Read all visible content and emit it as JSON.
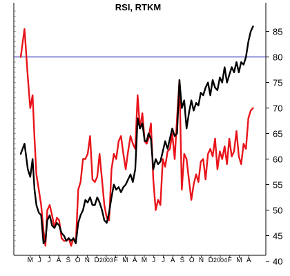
{
  "chart_data": {
    "type": "line",
    "title": "RSI, RTKM",
    "xlabel": "",
    "ylabel": "",
    "ylim": [
      40,
      88
    ],
    "y_ticks": [
      40,
      45,
      50,
      55,
      60,
      65,
      70,
      75,
      80,
      85
    ],
    "y_tick_labels": [
      "40",
      "45",
      "50",
      "55",
      "60",
      "65",
      "70",
      "75",
      "80",
      "85"
    ],
    "x_tick_labels": [
      "M",
      "J",
      "J",
      "A",
      "S",
      "O",
      "N",
      "D",
      "2003",
      "F",
      "M",
      "A",
      "M",
      "J",
      "J",
      "A",
      "S",
      "O",
      "N",
      "D",
      "2004",
      "F",
      "M",
      "A"
    ],
    "x_tick_positions": [
      1.0,
      2.0,
      3.0,
      4.0,
      5.0,
      6.0,
      7.0,
      8.0,
      9.0,
      10.0,
      11.0,
      12.0,
      13.0,
      14.0,
      15.0,
      16.0,
      17.0,
      18.0,
      19.0,
      20.0,
      21.0,
      22.0,
      23.0,
      24.0
    ],
    "xlim": [
      0,
      25.5
    ],
    "grid": false,
    "reference_lines": [
      {
        "y": 80,
        "color": "#1a1aa8"
      }
    ],
    "series": [
      {
        "color": "#e8141a",
        "x": [
          0,
          0.4,
          0.75,
          1.0,
          1.25,
          1.45,
          1.65,
          1.9,
          2.15,
          2.4,
          2.6,
          2.8,
          3.05,
          3.3,
          3.55,
          3.8,
          4.05,
          4.3,
          4.55,
          4.8,
          5.05,
          5.3,
          5.55,
          5.8,
          6.05,
          6.3,
          6.55,
          6.8,
          7.05,
          7.3,
          7.55,
          7.8,
          8.05,
          8.3,
          8.55,
          8.8,
          9.05,
          9.3,
          9.55,
          9.8,
          10.05,
          10.3,
          10.55,
          10.8,
          11.05,
          11.3,
          11.55,
          11.8,
          12.05,
          12.3,
          12.55,
          12.8,
          13.05,
          13.25,
          13.45,
          13.7,
          13.95,
          14.2,
          14.45,
          14.7,
          14.95,
          15.2,
          15.45,
          15.7,
          15.95,
          16.2,
          16.45,
          16.7,
          16.95,
          17.2,
          17.45,
          17.7,
          17.95,
          18.2,
          18.45,
          18.7,
          18.95,
          19.2,
          19.45,
          19.7,
          19.95,
          20.2,
          20.45,
          20.7,
          20.95,
          21.2,
          21.45,
          21.7,
          21.95,
          22.2,
          22.45,
          22.7,
          22.95,
          23.2,
          23.45,
          23.7,
          23.95,
          24.2,
          24.45
        ],
        "values": [
          80,
          85.5,
          76,
          70,
          72.5,
          64,
          57,
          54,
          51,
          46,
          43,
          50,
          51,
          49,
          46.5,
          48.5,
          48,
          44.5,
          44,
          44,
          44.5,
          43,
          44.5,
          43.5,
          54,
          55.5,
          60,
          60,
          61,
          64.5,
          56,
          55.5,
          56.5,
          61,
          56,
          51,
          48.5,
          48,
          58,
          61,
          60,
          63.5,
          64.5,
          61,
          58,
          61.5,
          64.5,
          63,
          62,
          72.5,
          66,
          69,
          63.5,
          63,
          64,
          67,
          56,
          50,
          52,
          51,
          60,
          58.5,
          61.5,
          62,
          65,
          60,
          68,
          75.5,
          54,
          61,
          60,
          56,
          52,
          55,
          57,
          55.5,
          59.5,
          60,
          56,
          61,
          62,
          60.5,
          64,
          58,
          61.5,
          60,
          62.5,
          59,
          64,
          60.5,
          61.5,
          65.5,
          60.5,
          59,
          63,
          62,
          68,
          69.5,
          70
        ]
      },
      {
        "color": "#000000",
        "x": [
          0,
          0.4,
          0.75,
          1.0,
          1.25,
          1.45,
          1.65,
          1.9,
          2.15,
          2.4,
          2.6,
          2.8,
          3.05,
          3.3,
          3.55,
          3.8,
          4.05,
          4.3,
          4.55,
          4.8,
          5.05,
          5.3,
          5.55,
          5.8,
          6.05,
          6.3,
          6.55,
          6.8,
          7.05,
          7.3,
          7.55,
          7.8,
          8.05,
          8.3,
          8.55,
          8.8,
          9.05,
          9.3,
          9.55,
          9.8,
          10.05,
          10.3,
          10.55,
          10.8,
          11.05,
          11.3,
          11.55,
          11.8,
          12.05,
          12.3,
          12.55,
          12.8,
          13.05,
          13.25,
          13.45,
          13.7,
          13.95,
          14.2,
          14.45,
          14.7,
          14.95,
          15.2,
          15.45,
          15.7,
          15.95,
          16.2,
          16.45,
          16.7,
          16.95,
          17.2,
          17.45,
          17.7,
          17.95,
          18.2,
          18.45,
          18.7,
          18.95,
          19.2,
          19.45,
          19.7,
          19.95,
          20.2,
          20.45,
          20.7,
          20.95,
          21.2,
          21.45,
          21.7,
          21.95,
          22.2,
          22.45,
          22.7,
          22.95,
          23.2,
          23.45,
          23.7,
          23.95,
          24.2,
          24.45
        ],
        "values": [
          61,
          63,
          58,
          56.5,
          60,
          54,
          51,
          49.5,
          49,
          43.5,
          44,
          48,
          49,
          47,
          46.5,
          47.5,
          47,
          45.5,
          45,
          44,
          44.5,
          44,
          44.5,
          43.5,
          47.5,
          49,
          50,
          52,
          51.5,
          52.5,
          51,
          51,
          52.5,
          51.5,
          50,
          48,
          47.5,
          49.5,
          52.5,
          55,
          54,
          54.5,
          53.5,
          54.5,
          55,
          56,
          57,
          55.5,
          58,
          68,
          66,
          67,
          63.5,
          63.5,
          65,
          64,
          58,
          60,
          59,
          59.5,
          61.5,
          63.5,
          62,
          64,
          66,
          64.5,
          65,
          75.5,
          70,
          71.5,
          66,
          69,
          71.5,
          69.5,
          71,
          70.5,
          73,
          72.5,
          74,
          75,
          72.5,
          75.5,
          74,
          73.5,
          76,
          75,
          78,
          75,
          76.5,
          78,
          77,
          79,
          77,
          79,
          78.5,
          80,
          83,
          85,
          86
        ]
      }
    ]
  }
}
